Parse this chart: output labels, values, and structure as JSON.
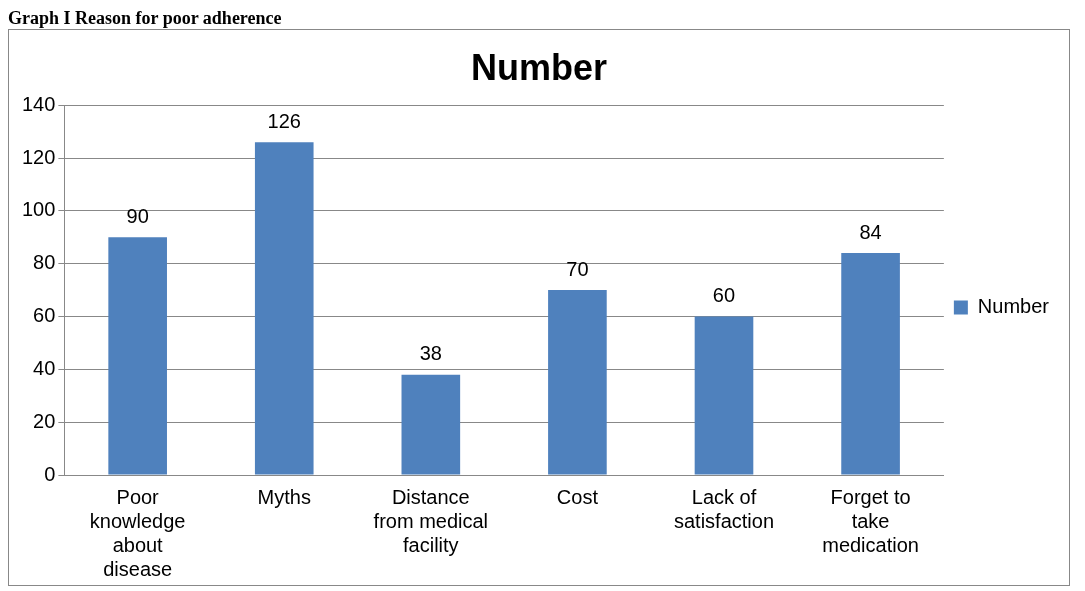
{
  "chart_data": {
    "type": "bar",
    "title": "Number",
    "annotations": [
      "Graph I Reason for poor adherence"
    ],
    "categories": [
      "Poor knowledge about disease",
      "Myths",
      "Distance from medical facility",
      "Cost",
      "Lack of satisfaction",
      "Forget to take medication"
    ],
    "series": [
      {
        "name": "Number",
        "color": "#4f81bd",
        "values": [
          90,
          126,
          38,
          70,
          60,
          84
        ]
      }
    ],
    "ylim": [
      0,
      140
    ],
    "yticks": [
      0,
      20,
      40,
      60,
      80,
      100,
      120,
      140
    ],
    "grid": "y",
    "legend": "right",
    "data_labels": true
  }
}
